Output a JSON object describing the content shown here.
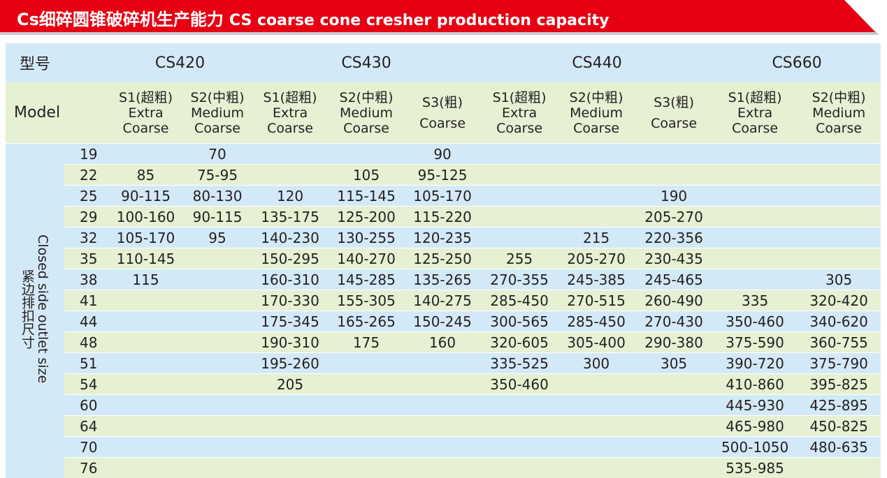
{
  "header": {
    "title_zh": "Cs细碎圆锥破碎机生产能力",
    "title_en": "CS coarse cone cresher production capacity"
  },
  "table": {
    "model_label_zh": "型号",
    "model_label_en": "Model",
    "models": [
      "CS420",
      "CS430",
      "CS440",
      "CS660"
    ],
    "subheaders": [
      [
        "S1(超粗)",
        "Extra",
        "Coarse"
      ],
      [
        "S2(中粗)",
        "Medium",
        "Coarse"
      ],
      [
        "S1(超粗)",
        "Extra",
        "Coarse"
      ],
      [
        "S2(中粗)",
        "Medium",
        "Coarse"
      ],
      [
        "S3(粗)",
        "Coarse"
      ],
      [
        "S1(超粗)",
        "Extra",
        "Coarse"
      ],
      [
        "S2(中粗)",
        "Medium",
        "Coarse"
      ],
      [
        "S3(粗)",
        "Coarse"
      ],
      [
        "S1(超粗)",
        "Extra",
        "Coarse"
      ],
      [
        "S2(中粗)",
        "Medium",
        "Coarse"
      ]
    ],
    "side_label_en": "Closed side outlet size",
    "side_label_zh": "紧边排扣尺寸",
    "rows": [
      {
        "size": "19",
        "cells": [
          null,
          "70",
          null,
          null,
          "90",
          null,
          null,
          null,
          null,
          null
        ]
      },
      {
        "size": "22",
        "cells": [
          "85",
          "75-95",
          null,
          "105",
          "95-125",
          null,
          null,
          null,
          null,
          null
        ]
      },
      {
        "size": "25",
        "cells": [
          "90-115",
          "80-130",
          "120",
          "115-145",
          "105-170",
          null,
          null,
          "190",
          null,
          null
        ]
      },
      {
        "size": "29",
        "cells": [
          "100-160",
          "90-115",
          "135-175",
          "125-200",
          "115-220",
          null,
          null,
          "205-270",
          null,
          null
        ]
      },
      {
        "size": "32",
        "cells": [
          "105-170",
          "95",
          "140-230",
          "130-255",
          "120-235",
          null,
          "215",
          "220-356",
          null,
          null
        ]
      },
      {
        "size": "35",
        "cells": [
          "110-145",
          null,
          "150-295",
          "140-270",
          "125-250",
          "255",
          "205-270",
          "230-435",
          null,
          null
        ]
      },
      {
        "size": "38",
        "cells": [
          "115",
          null,
          "160-310",
          "145-285",
          "135-265",
          "270-355",
          "245-385",
          "245-465",
          null,
          "305"
        ]
      },
      {
        "size": "41",
        "cells": [
          null,
          null,
          "170-330",
          "155-305",
          "140-275",
          "285-450",
          "270-515",
          "260-490",
          "335",
          "320-420"
        ]
      },
      {
        "size": "44",
        "cells": [
          null,
          null,
          "175-345",
          "165-265",
          "150-245",
          "300-565",
          "285-450",
          "270-430",
          "350-460",
          "340-620"
        ]
      },
      {
        "size": "48",
        "cells": [
          null,
          null,
          "190-310",
          "175",
          "160",
          "320-605",
          "305-400",
          "290-380",
          "375-590",
          "360-755"
        ]
      },
      {
        "size": "51",
        "cells": [
          null,
          null,
          "195-260",
          null,
          null,
          "335-525",
          "300",
          "305",
          "390-720",
          "375-790"
        ]
      },
      {
        "size": "54",
        "cells": [
          null,
          null,
          "205",
          null,
          null,
          "350-460",
          null,
          null,
          "410-860",
          "395-825"
        ]
      },
      {
        "size": "60",
        "cells": [
          null,
          null,
          null,
          null,
          null,
          null,
          null,
          null,
          "445-930",
          "425-895"
        ]
      },
      {
        "size": "64",
        "cells": [
          null,
          null,
          null,
          null,
          null,
          null,
          null,
          null,
          "465-980",
          "450-825"
        ]
      },
      {
        "size": "70",
        "cells": [
          null,
          null,
          null,
          null,
          null,
          null,
          null,
          null,
          "500-1050",
          "480-635"
        ]
      },
      {
        "size": "76",
        "cells": [
          null,
          null,
          null,
          null,
          null,
          null,
          null,
          null,
          "535-985",
          null
        ]
      }
    ]
  }
}
